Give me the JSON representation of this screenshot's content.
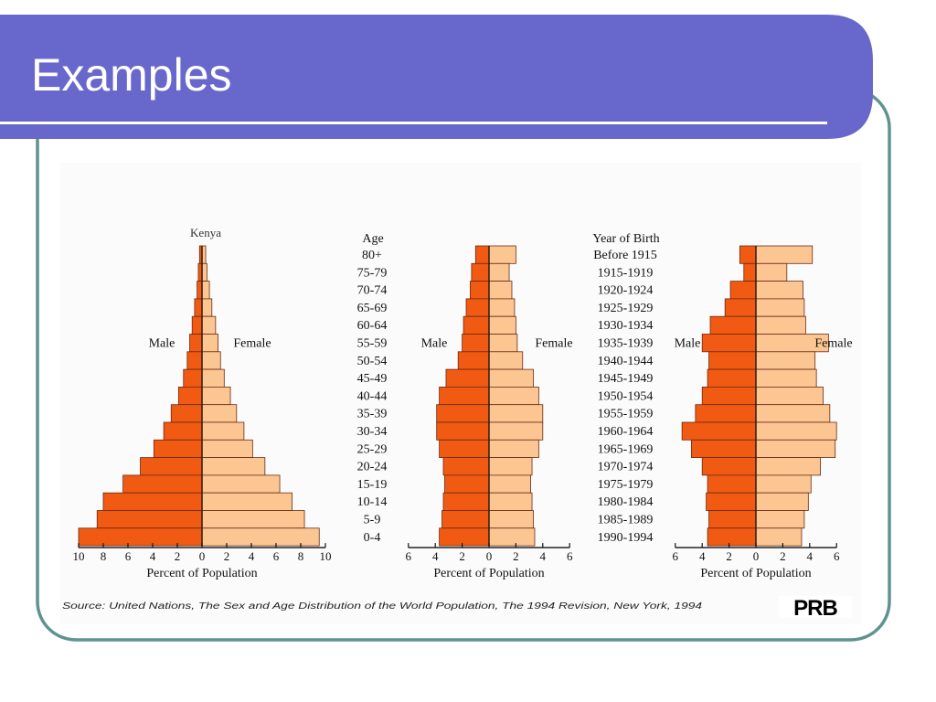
{
  "slide": {
    "title": "Examples",
    "colors": {
      "title_bar": "#6868cc",
      "frame_border": "#5f9390",
      "rule": "#ffffff"
    }
  },
  "figure": {
    "source_note": "Source: United Nations, The Sex and Age Distribution of the World Population, The 1994 Revision, New York, 1994",
    "logo_text": "PRB",
    "kenya_label": "Kenya",
    "age_header": "Age",
    "year_header": "Year of Birth",
    "age_groups": [
      "80+",
      "75-79",
      "70-74",
      "65-69",
      "60-64",
      "55-59",
      "50-54",
      "45-49",
      "40-44",
      "35-39",
      "30-34",
      "25-29",
      "20-24",
      "15-19",
      "10-14",
      "5-9",
      "0-4"
    ],
    "birth_years": [
      "Before 1915",
      "1915-1919",
      "1920-1924",
      "1925-1929",
      "1930-1934",
      "1935-1939",
      "1940-1944",
      "1945-1949",
      "1950-1954",
      "1955-1959",
      "1960-1964",
      "1965-1969",
      "1970-1974",
      "1975-1979",
      "1980-1984",
      "1985-1989",
      "1990-1994"
    ],
    "colors": {
      "male": "#f05a12",
      "female": "#fcc693",
      "outline": "#6a2a10"
    }
  },
  "chart_data": [
    {
      "type": "bar",
      "orientation": "population-pyramid",
      "title": "Kenya",
      "xlabel": "Percent of Population",
      "male_label": "Male",
      "female_label": "Female",
      "categories": [
        "80+",
        "75-79",
        "70-74",
        "65-69",
        "60-64",
        "55-59",
        "50-54",
        "45-49",
        "40-44",
        "35-39",
        "30-34",
        "25-29",
        "20-24",
        "15-19",
        "10-14",
        "5-9",
        "0-4"
      ],
      "series": [
        {
          "name": "Male",
          "values": [
            0.2,
            0.3,
            0.4,
            0.6,
            0.8,
            1.0,
            1.2,
            1.5,
            1.9,
            2.5,
            3.1,
            3.9,
            5.0,
            6.4,
            8.0,
            8.5,
            10.0
          ]
        },
        {
          "name": "Female",
          "values": [
            0.3,
            0.4,
            0.6,
            0.8,
            1.1,
            1.3,
            1.5,
            1.8,
            2.3,
            2.8,
            3.4,
            4.1,
            5.1,
            6.3,
            7.3,
            8.3,
            9.5
          ]
        }
      ],
      "xlim": [
        -10,
        10
      ],
      "ticks": [
        -10,
        -8,
        -6,
        -4,
        -2,
        0,
        2,
        4,
        6,
        8,
        10
      ],
      "tick_labels": [
        "10",
        "8",
        "6",
        "4",
        "2",
        "0",
        "2",
        "4",
        "6",
        "8",
        "10"
      ]
    },
    {
      "type": "bar",
      "orientation": "population-pyramid",
      "xlabel": "Percent of Population",
      "male_label": "Male",
      "female_label": "Female",
      "categories": [
        "80+",
        "75-79",
        "70-74",
        "65-69",
        "60-64",
        "55-59",
        "50-54",
        "45-49",
        "40-44",
        "35-39",
        "30-34",
        "25-29",
        "20-24",
        "15-19",
        "10-14",
        "5-9",
        "0-4"
      ],
      "series": [
        {
          "name": "Male",
          "values": [
            1.0,
            1.3,
            1.4,
            1.7,
            1.9,
            2.0,
            2.3,
            3.2,
            3.7,
            3.9,
            3.9,
            3.7,
            3.4,
            3.3,
            3.4,
            3.5,
            3.7
          ]
        },
        {
          "name": "Female",
          "values": [
            2.0,
            1.5,
            1.7,
            1.9,
            2.0,
            2.1,
            2.5,
            3.3,
            3.7,
            4.0,
            4.0,
            3.7,
            3.2,
            3.1,
            3.2,
            3.3,
            3.4
          ]
        }
      ],
      "xlim": [
        -6,
        6
      ],
      "ticks": [
        -6,
        -4,
        -2,
        0,
        2,
        4,
        6
      ],
      "tick_labels": [
        "6",
        "4",
        "2",
        "0",
        "2",
        "4",
        "6"
      ]
    },
    {
      "type": "bar",
      "orientation": "population-pyramid",
      "xlabel": "Percent of Population",
      "male_label": "Male",
      "female_label": "Female",
      "categories": [
        "Before 1915",
        "1915-1919",
        "1920-1924",
        "1925-1929",
        "1930-1934",
        "1935-1939",
        "1940-1944",
        "1945-1949",
        "1950-1954",
        "1955-1959",
        "1960-1964",
        "1965-1969",
        "1970-1974",
        "1975-1979",
        "1980-1984",
        "1985-1989",
        "1990-1994"
      ],
      "series": [
        {
          "name": "Male",
          "values": [
            1.2,
            0.9,
            1.9,
            2.3,
            3.4,
            4.0,
            3.5,
            3.6,
            4.0,
            4.5,
            5.5,
            4.8,
            4.0,
            3.6,
            3.7,
            3.5,
            3.6
          ]
        },
        {
          "name": "Female",
          "values": [
            4.2,
            2.3,
            3.5,
            3.6,
            3.7,
            5.4,
            4.4,
            4.5,
            5.0,
            5.5,
            6.0,
            5.9,
            4.8,
            4.1,
            3.9,
            3.6,
            3.4
          ]
        }
      ],
      "xlim": [
        -6,
        6
      ],
      "ticks": [
        -6,
        -4,
        -2,
        0,
        2,
        4,
        6
      ],
      "tick_labels": [
        "6",
        "4",
        "2",
        "0",
        "2",
        "4",
        "6"
      ]
    }
  ]
}
